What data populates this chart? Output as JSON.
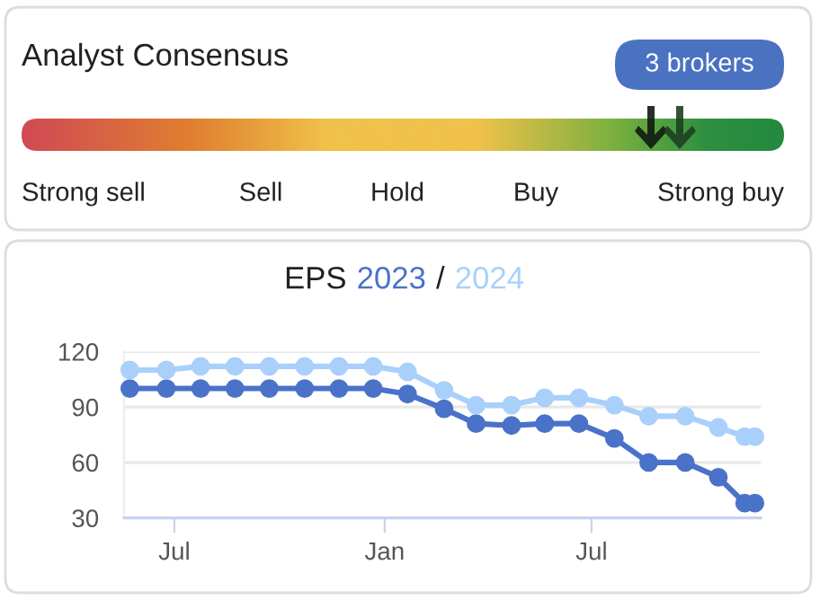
{
  "chart_data": [
    {
      "type": "other",
      "title": "Analyst Consensus",
      "categories": [
        "Strong sell",
        "Sell",
        "Hold",
        "Buy",
        "Strong buy"
      ],
      "annotations": [
        "3 brokers"
      ]
    },
    {
      "type": "line",
      "title": "EPS",
      "annotations": [
        "/"
      ],
      "legend": "top",
      "marker": "circle",
      "line_style": "solid",
      "grid": "y",
      "x": [
        "2022-05-23",
        "2022-06-24",
        "2022-07-24",
        "2022-08-23",
        "2022-09-22",
        "2022-10-23",
        "2022-11-22",
        "2022-12-22",
        "2023-01-21",
        "2023-02-22",
        "2023-03-22",
        "2023-04-22",
        "2023-05-21",
        "2023-06-20",
        "2023-07-21",
        "2023-08-20",
        "2023-09-21",
        "2023-10-20",
        "2023-11-12",
        "2023-11-21"
      ],
      "series": [
        {
          "name": "2023",
          "color": "#4a72c8",
          "values": [
            100,
            100,
            100,
            100,
            100,
            100,
            100,
            100,
            97,
            89,
            81,
            80,
            81,
            81,
            73,
            60,
            60,
            52,
            38,
            38
          ]
        },
        {
          "name": "2024",
          "color": "#a8d0fa",
          "values": [
            110,
            110,
            112,
            112,
            112,
            112,
            112,
            112,
            109,
            99,
            91,
            91,
            95,
            95,
            91,
            85,
            85,
            79,
            74,
            74
          ]
        }
      ],
      "xlim": [
        "2022-05-18",
        "2023-11-26"
      ],
      "xticks": [
        {
          "value": "2022-07-01",
          "label": "Jul"
        },
        {
          "value": "2023-01-01",
          "label": "Jan"
        },
        {
          "value": "2023-07-01",
          "label": "Jul"
        }
      ],
      "ylim": [
        30,
        120
      ],
      "yticks": [
        30,
        60,
        90,
        120
      ]
    }
  ]
}
